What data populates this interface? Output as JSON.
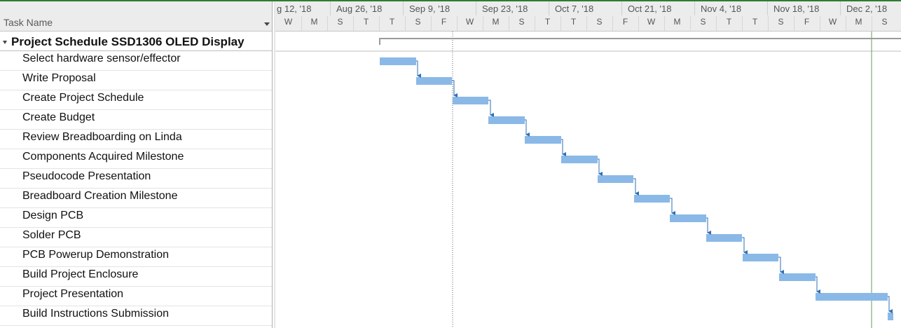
{
  "table": {
    "header_label": "Task Name",
    "summary": "Project Schedule SSD1306 OLED Display",
    "tasks": [
      "Select hardware sensor/effector",
      "Write Proposal",
      "Create Project Schedule",
      "Create Budget",
      "Review Breadboarding on Linda",
      "Components Acquired Milestone",
      "Pseudocode Presentation",
      "Breadboard Creation Milestone",
      "Design PCB",
      "Solder PCB",
      "PCB Powerup Demonstration",
      "Build Project Enclosure",
      "Project Presentation",
      "Build Instructions Submission"
    ]
  },
  "timescale": {
    "major": [
      "g 12, '18",
      "Aug 26, '18",
      "Sep 9, '18",
      "Sep 23, '18",
      "Oct 7, '18",
      "Oct 21, '18",
      "Nov 4, '18",
      "Nov 18, '18",
      "Dec 2, '18"
    ],
    "minor": [
      "W",
      "M",
      "S",
      "T",
      "T",
      "S",
      "F",
      "W",
      "M",
      "S",
      "T",
      "T",
      "S",
      "F",
      "W",
      "M",
      "S",
      "T",
      "T",
      "S",
      "F",
      "W",
      "M",
      "S"
    ]
  },
  "colors": {
    "bar": "#8ab9e8",
    "link": "#2f6fb4",
    "summary_bar": "#9a9a9a",
    "today_line": "#666666",
    "status_line": "#6a9b5a"
  }
}
